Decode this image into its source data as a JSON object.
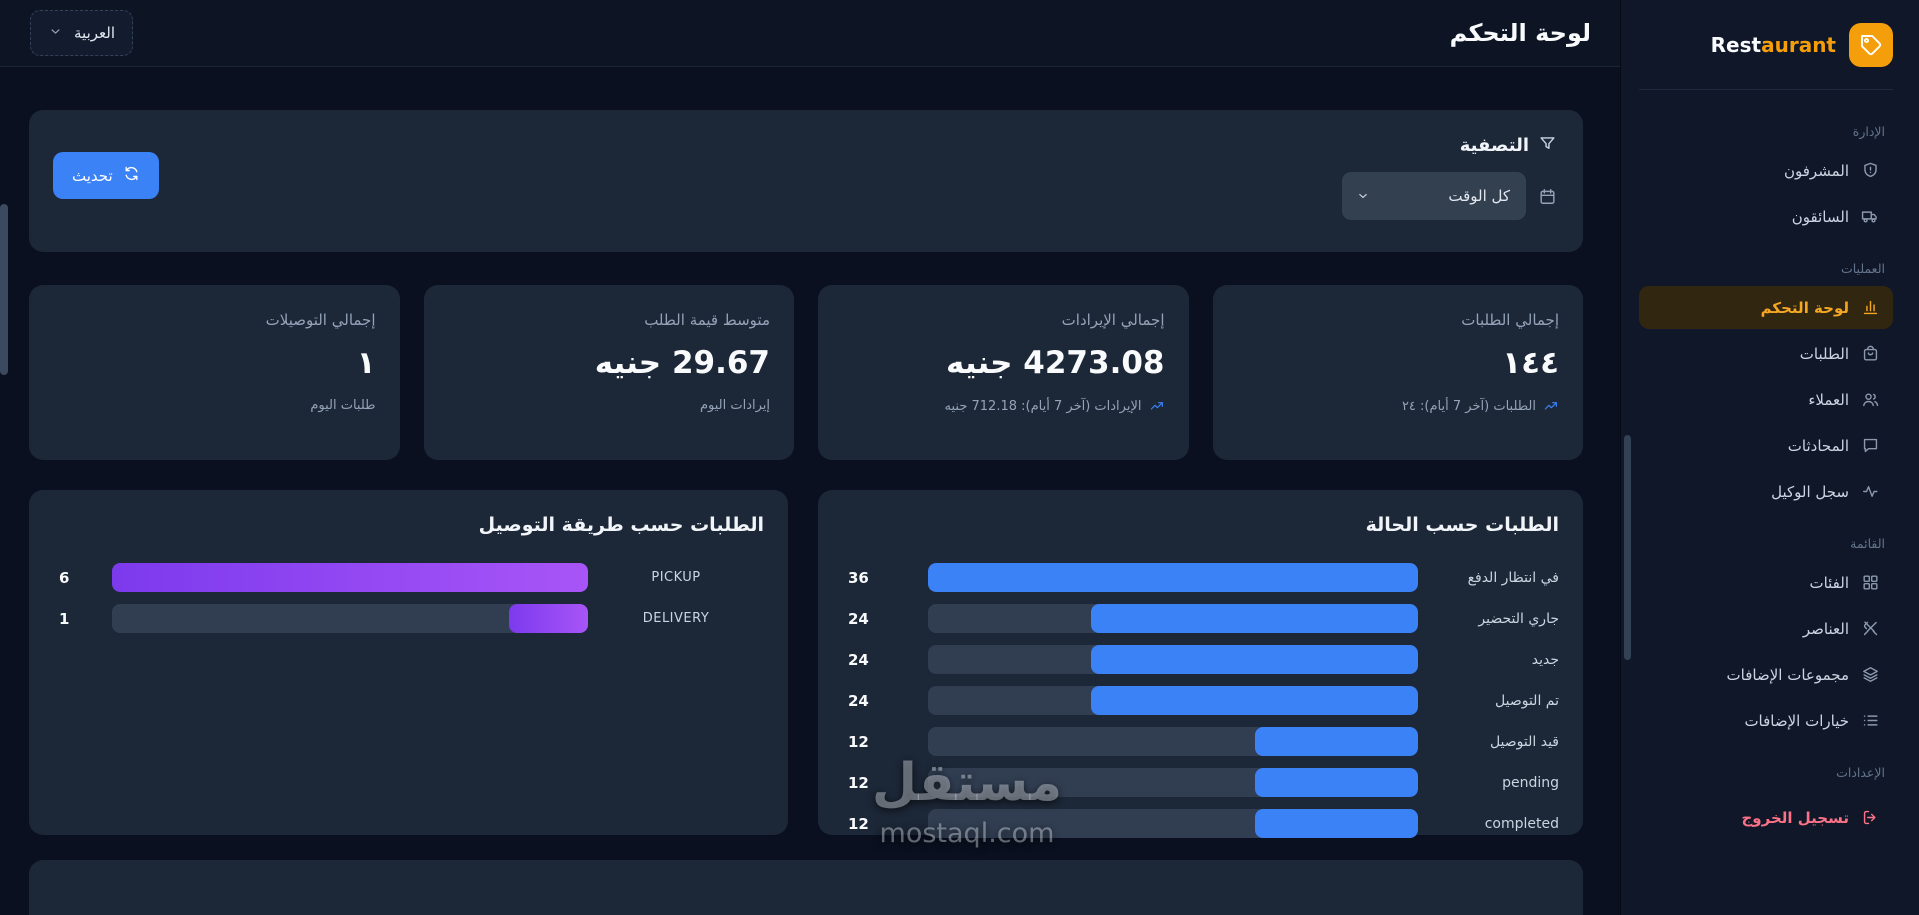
{
  "header": {
    "title": "لوحة التحكم",
    "language_label": "العربية"
  },
  "sidebar": {
    "brand": {
      "name_prefix": "Rest",
      "name_suffix": "aurant",
      "logo_icon": "tag-icon",
      "logo_color": "#f59e0b"
    },
    "sections": [
      {
        "label": "الإدارة",
        "items": [
          {
            "key": "supervisors",
            "label": "المشرفون",
            "icon": "shield"
          },
          {
            "key": "drivers",
            "label": "السائقون",
            "icon": "truck"
          }
        ]
      },
      {
        "label": "العمليات",
        "items": [
          {
            "key": "dashboard",
            "label": "لوحة التحكم",
            "icon": "chart",
            "active": true
          },
          {
            "key": "orders",
            "label": "الطلبات",
            "icon": "bag"
          },
          {
            "key": "customers",
            "label": "العملاء",
            "icon": "users"
          },
          {
            "key": "chats",
            "label": "المحادثات",
            "icon": "chat"
          },
          {
            "key": "agent-log",
            "label": "سجل الوكيل",
            "icon": "activity"
          }
        ]
      },
      {
        "label": "القائمة",
        "items": [
          {
            "key": "categories",
            "label": "الفئات",
            "icon": "grid"
          },
          {
            "key": "items",
            "label": "العناصر",
            "icon": "utensils"
          },
          {
            "key": "addon-groups",
            "label": "مجموعات الإضافات",
            "icon": "layers"
          },
          {
            "key": "addon-options",
            "label": "خيارات الإضافات",
            "icon": "list"
          }
        ]
      },
      {
        "label": "الإعدادات",
        "items": [
          {
            "key": "logout",
            "label": "تسجيل الخروج",
            "icon": "logout",
            "danger": true
          }
        ]
      }
    ]
  },
  "filter": {
    "title": "التصفية",
    "refresh_label": "تحديث",
    "period_value": "كل الوقت"
  },
  "stats": [
    {
      "title": "إجمالي الطلبات",
      "value": "١٤٤",
      "subtitle": "الطلبات (آخر 7 أيام): ٢٤",
      "trend_icon": true
    },
    {
      "title": "إجمالي الإيرادات",
      "value": "4273.08 جنيه",
      "subtitle": "الإيرادات (آخر 7 أيام): 712.18 جنيه",
      "trend_icon": true
    },
    {
      "title": "متوسط قيمة الطلب",
      "value": "29.67 جنيه",
      "subtitle": "إيرادات اليوم",
      "trend_icon": false
    },
    {
      "title": "إجمالي التوصيلات",
      "value": "١",
      "subtitle": "طلبات اليوم",
      "trend_icon": false
    }
  ],
  "chart_data": [
    {
      "type": "bar",
      "orientation": "horizontal-rtl",
      "title": "الطلبات حسب الحالة",
      "categories": [
        "في انتظار الدفع",
        "جاري التحضير",
        "جديد",
        "تم التوصيل",
        "قيد التوصيل",
        "pending",
        "completed"
      ],
      "values": [
        36,
        24,
        24,
        24,
        12,
        12,
        12
      ],
      "xlim": [
        0,
        36
      ],
      "bar_color": "#3b82f6",
      "track_color": "#313e52",
      "grid": false,
      "value_labels": "left-of-bar"
    },
    {
      "type": "bar",
      "orientation": "horizontal-rtl",
      "title": "الطلبات حسب طريقة التوصيل",
      "categories": [
        "PICKUP",
        "DELIVERY"
      ],
      "values": [
        6,
        1
      ],
      "xlim": [
        0,
        6
      ],
      "bar_color": "#8b5cf6",
      "track_color": "#313e52",
      "grid": false,
      "value_labels": "left-of-bar"
    }
  ],
  "watermark": {
    "line1": "مستقل",
    "line2": "mostaql.com"
  },
  "colors": {
    "accent_orange": "#f59e0b",
    "primary_blue": "#3b82f6",
    "purple": "#8b5cf6",
    "danger": "#fb7185",
    "card_bg": "#1c2737",
    "sidebar_bg": "#0f1729",
    "page_bg": "#0a101f"
  }
}
